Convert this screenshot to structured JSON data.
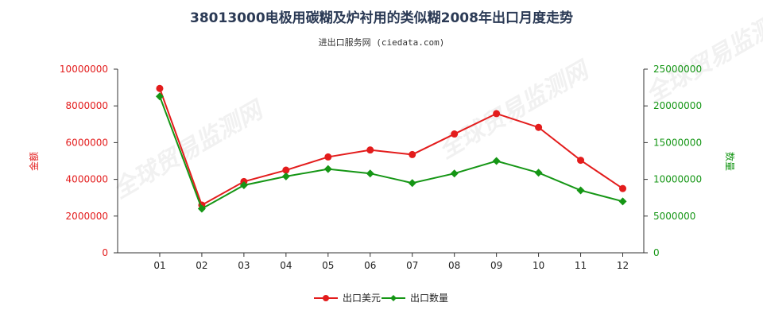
{
  "chart_data": {
    "type": "line",
    "title": "38013000电极用碳糊及炉衬用的类似糊2008年出口月度走势",
    "subtitle": "进出口服务网 (ciedata.com)",
    "categories": [
      "01",
      "02",
      "03",
      "04",
      "05",
      "06",
      "07",
      "08",
      "09",
      "10",
      "11",
      "12"
    ],
    "y_left": {
      "label": "金额",
      "range": [
        0,
        10000000
      ],
      "ticks": [
        "0",
        "2000000",
        "4000000",
        "6000000",
        "8000000",
        "10000000"
      ]
    },
    "y_right": {
      "label": "数量",
      "range": [
        0,
        25000000
      ],
      "ticks": [
        "0",
        "5000000",
        "10000000",
        "15000000",
        "20000000",
        "25000000"
      ]
    },
    "series": [
      {
        "name": "出口美元",
        "axis": "left",
        "color": "#e31c1c",
        "values": [
          8950000,
          2600000,
          3880000,
          4500000,
          5220000,
          5600000,
          5350000,
          6470000,
          7580000,
          6830000,
          5040000,
          3500000
        ]
      },
      {
        "name": "出口数量",
        "axis": "right",
        "color": "#159615",
        "values": [
          21300000,
          6000000,
          9200000,
          10400000,
          11400000,
          10800000,
          9500000,
          10800000,
          12500000,
          10900000,
          8500000,
          7000000
        ]
      }
    ],
    "grid": false,
    "legend_position": "bottom-center",
    "watermark": "全球贸易监测网"
  }
}
